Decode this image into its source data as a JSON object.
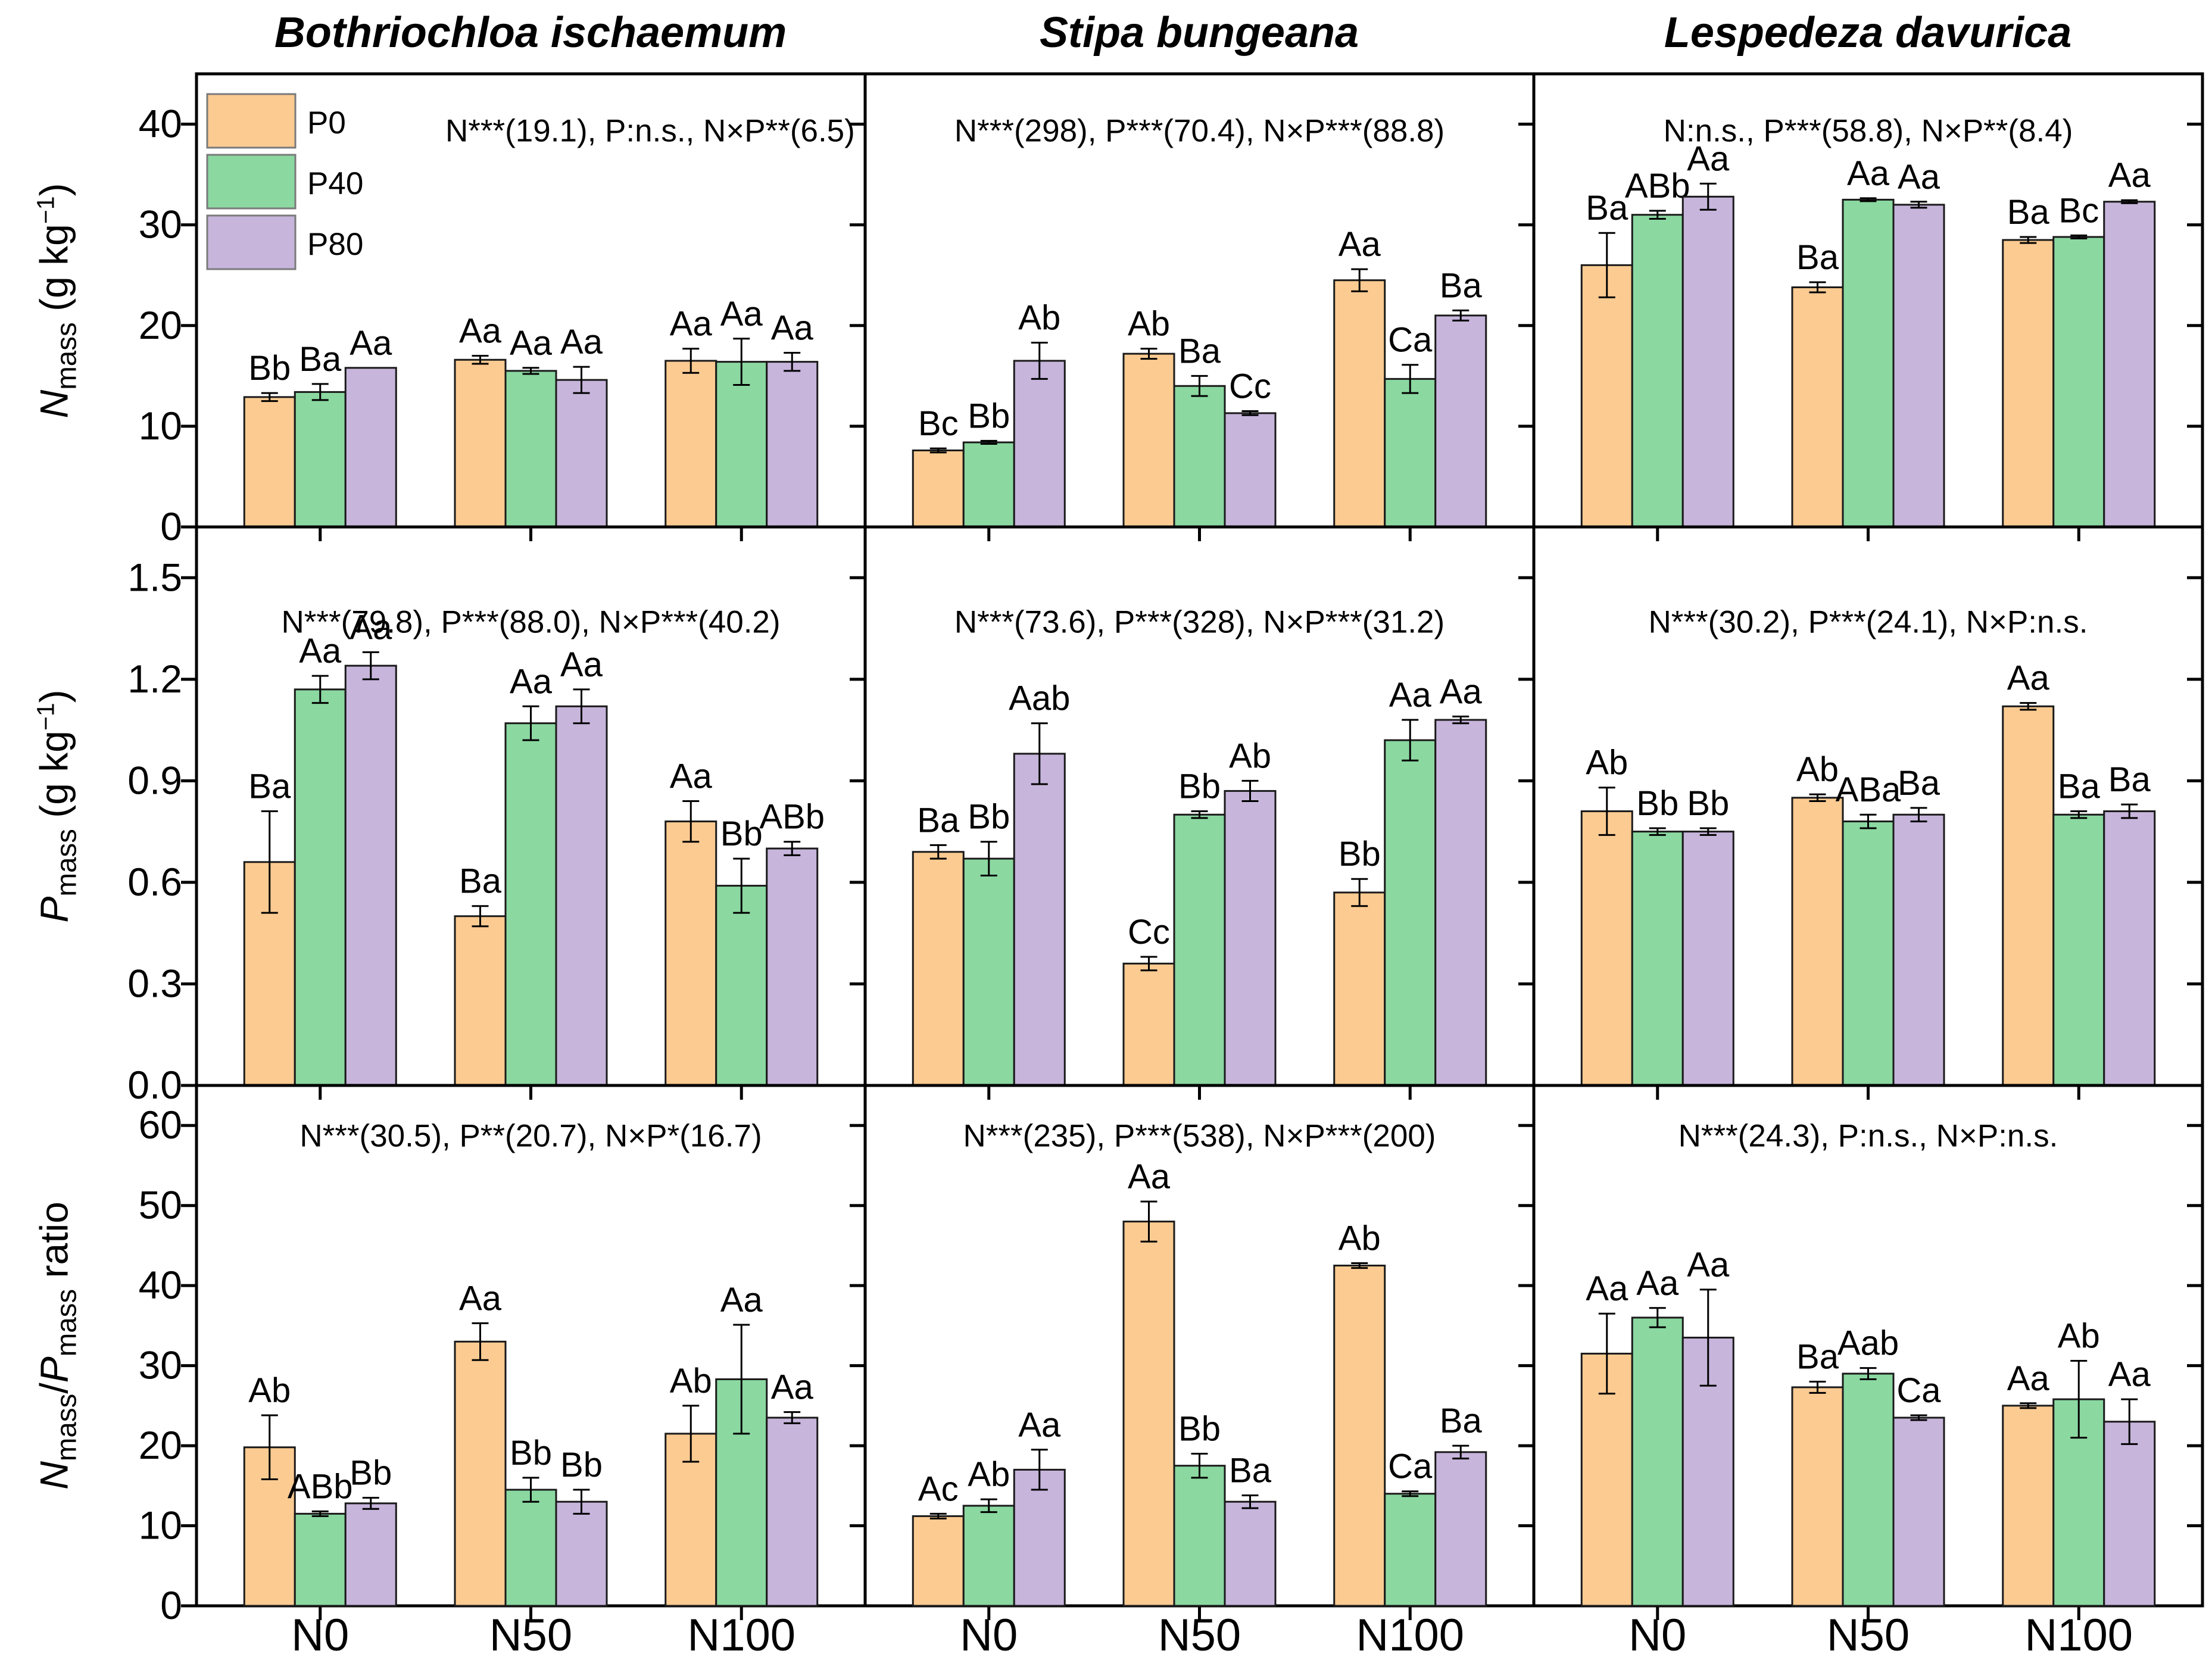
{
  "figure": {
    "kind": "3x3 grouped bar chart panel (species x traits, N and P fertilization experiment)",
    "background": "#ffffff",
    "frame_color": "#000000",
    "bar_edge_color": "#1a1a1a",
    "error_bar_color": "#000000"
  },
  "titles": {
    "col1": "Bothriochloa ischaemum",
    "col2": "Stipa bungeana",
    "col3": "Lespedeza davurica"
  },
  "legend": {
    "items": [
      {
        "label": "P0",
        "color": "#FBCB92"
      },
      {
        "label": "P40",
        "color": "#8BD8A1"
      },
      {
        "label": "P80",
        "color": "#C7B5DC"
      }
    ]
  },
  "chart_data": {
    "type": "bar",
    "categories": [
      "N0",
      "N50",
      "N100"
    ],
    "series_names": [
      "P0",
      "P40",
      "P80"
    ],
    "series_colors": [
      "#FBCB92",
      "#8BD8A1",
      "#C7B5DC"
    ],
    "grid": "off",
    "legend_position": "top-left of first panel",
    "columns": [
      "Bothriochloa ischaemum",
      "Stipa bungeana",
      "Lespedeza davurica"
    ],
    "rows": [
      {
        "ylabel_segments": [
          {
            "t": "N",
            "st": "it"
          },
          {
            "t": "mass",
            "st": "sub"
          },
          {
            "t": " (g kg",
            "st": ""
          },
          {
            "t": "−1",
            "st": "sup"
          },
          {
            "t": ")",
            "st": ""
          }
        ],
        "ticks": [
          "0",
          "10",
          "20",
          "30",
          "40"
        ],
        "ylim": [
          0,
          45
        ]
      },
      {
        "ylabel_segments": [
          {
            "t": "P",
            "st": "it"
          },
          {
            "t": "mass",
            "st": "sub"
          },
          {
            "t": " (g kg",
            "st": ""
          },
          {
            "t": "−1",
            "st": "sup"
          },
          {
            "t": ")",
            "st": ""
          }
        ],
        "ticks": [
          "0.0",
          "0.3",
          "0.6",
          "0.9",
          "1.2",
          "1.5"
        ],
        "ylim": [
          0,
          1.65
        ]
      },
      {
        "ylabel_segments": [
          {
            "t": "N",
            "st": "it"
          },
          {
            "t": "mass",
            "st": "sub"
          },
          {
            "t": "/",
            "st": ""
          },
          {
            "t": "P",
            "st": "it"
          },
          {
            "t": "mass",
            "st": "sub"
          },
          {
            "t": " ratio",
            "st": ""
          }
        ],
        "ticks": [
          "0",
          "10",
          "20",
          "30",
          "40",
          "50",
          "60"
        ],
        "ylim": [
          0,
          65
        ]
      }
    ],
    "panels": [
      [
        {
          "annotation": "N***(19.1), P:n.s., N×P**(6.5)",
          "groups": [
            {
              "category": "N0",
              "values": [
                12.9,
                13.4,
                15.8
              ],
              "errors": [
                0.4,
                0.8,
                0
              ],
              "sig_labels": [
                "Bb",
                "Ba",
                "Aa"
              ]
            },
            {
              "category": "N50",
              "values": [
                16.6,
                15.5,
                14.6
              ],
              "errors": [
                0.4,
                0.3,
                1.3
              ],
              "sig_labels": [
                "Aa",
                "Aa",
                "Aa"
              ]
            },
            {
              "category": "N100",
              "values": [
                16.5,
                16.4,
                16.4
              ],
              "errors": [
                1.2,
                2.3,
                0.9
              ],
              "sig_labels": [
                "Aa",
                "Aa",
                "Aa"
              ]
            }
          ]
        },
        {
          "annotation": "N***(298), P***(70.4), N×P***(88.8)",
          "groups": [
            {
              "category": "N0",
              "values": [
                7.6,
                8.4,
                16.5
              ],
              "errors": [
                0.2,
                0.15,
                1.8
              ],
              "sig_labels": [
                "Bc",
                "Bb",
                "Ab"
              ]
            },
            {
              "category": "N50",
              "values": [
                17.2,
                14.0,
                11.3
              ],
              "errors": [
                0.5,
                1.0,
                0.2
              ],
              "sig_labels": [
                "Ab",
                "Ba",
                "Cc"
              ]
            },
            {
              "category": "N100",
              "values": [
                24.5,
                14.7,
                21.0
              ],
              "errors": [
                1.1,
                1.4,
                0.5
              ],
              "sig_labels": [
                "Aa",
                "Ca",
                "Ba"
              ]
            }
          ]
        },
        {
          "annotation": "N:n.s., P***(58.8), N×P**(8.4)",
          "groups": [
            {
              "category": "N0",
              "values": [
                26.0,
                31.0,
                32.8
              ],
              "errors": [
                3.2,
                0.4,
                1.3
              ],
              "sig_labels": [
                "Ba",
                "ABb",
                "Aa"
              ]
            },
            {
              "category": "N50",
              "values": [
                23.8,
                32.5,
                32.0
              ],
              "errors": [
                0.5,
                0.15,
                0.3
              ],
              "sig_labels": [
                "Ba",
                "Aa",
                "Aa"
              ]
            },
            {
              "category": "N100",
              "values": [
                28.5,
                28.8,
                32.3
              ],
              "errors": [
                0.3,
                0.15,
                0.15
              ],
              "sig_labels": [
                "Ba",
                "Bc",
                "Aa"
              ]
            }
          ]
        }
      ],
      [
        {
          "annotation": "N***(79.8), P***(88.0), N×P***(40.2)",
          "groups": [
            {
              "category": "N0",
              "values": [
                0.66,
                1.17,
                1.24
              ],
              "errors": [
                0.15,
                0.04,
                0.04
              ],
              "sig_labels": [
                "Ba",
                "Aa",
                "Aa"
              ]
            },
            {
              "category": "N50",
              "values": [
                0.5,
                1.07,
                1.12
              ],
              "errors": [
                0.03,
                0.05,
                0.05
              ],
              "sig_labels": [
                "Ba",
                "Aa",
                "Aa"
              ]
            },
            {
              "category": "N100",
              "values": [
                0.78,
                0.59,
                0.7
              ],
              "errors": [
                0.06,
                0.08,
                0.02
              ],
              "sig_labels": [
                "Aa",
                "Bb",
                "ABb"
              ]
            }
          ]
        },
        {
          "annotation": "N***(73.6), P***(328), N×P***(31.2)",
          "groups": [
            {
              "category": "N0",
              "values": [
                0.69,
                0.67,
                0.98
              ],
              "errors": [
                0.02,
                0.05,
                0.09
              ],
              "sig_labels": [
                "Ba",
                "Bb",
                "Aab"
              ]
            },
            {
              "category": "N50",
              "values": [
                0.36,
                0.8,
                0.87
              ],
              "errors": [
                0.02,
                0.01,
                0.03
              ],
              "sig_labels": [
                "Cc",
                "Bb",
                "Ab"
              ]
            },
            {
              "category": "N100",
              "values": [
                0.57,
                1.02,
                1.08
              ],
              "errors": [
                0.04,
                0.06,
                0.01
              ],
              "sig_labels": [
                "Bb",
                "Aa",
                "Aa"
              ]
            }
          ]
        },
        {
          "annotation": "N***(30.2), P***(24.1), N×P:n.s.",
          "groups": [
            {
              "category": "N0",
              "values": [
                0.81,
                0.75,
                0.75
              ],
              "errors": [
                0.07,
                0.01,
                0.01
              ],
              "sig_labels": [
                "Ab",
                "Bb",
                "Bb"
              ]
            },
            {
              "category": "N50",
              "values": [
                0.85,
                0.78,
                0.8
              ],
              "errors": [
                0.01,
                0.02,
                0.02
              ],
              "sig_labels": [
                "Ab",
                "ABa",
                "Ba"
              ]
            },
            {
              "category": "N100",
              "values": [
                1.12,
                0.8,
                0.81
              ],
              "errors": [
                0.01,
                0.01,
                0.02
              ],
              "sig_labels": [
                "Aa",
                "Ba",
                "Ba"
              ]
            }
          ]
        }
      ],
      [
        {
          "annotation": "N***(30.5), P**(20.7), N×P*(16.7)",
          "groups": [
            {
              "category": "N0",
              "values": [
                19.8,
                11.5,
                12.8
              ],
              "errors": [
                4.0,
                0.3,
                0.7
              ],
              "sig_labels": [
                "Ab",
                "ABb",
                "Bb"
              ]
            },
            {
              "category": "N50",
              "values": [
                33.0,
                14.5,
                13.0
              ],
              "errors": [
                2.3,
                1.5,
                1.5
              ],
              "sig_labels": [
                "Aa",
                "Bb",
                "Bb"
              ]
            },
            {
              "category": "N100",
              "values": [
                21.5,
                28.3,
                23.5
              ],
              "errors": [
                3.5,
                6.8,
                0.7
              ],
              "sig_labels": [
                "Ab",
                "Aa",
                "Aa"
              ]
            }
          ]
        },
        {
          "annotation": "N***(235), P***(538), N×P***(200)",
          "groups": [
            {
              "category": "N0",
              "values": [
                11.2,
                12.5,
                17.0
              ],
              "errors": [
                0.3,
                0.8,
                2.5
              ],
              "sig_labels": [
                "Ac",
                "Ab",
                "Aa"
              ]
            },
            {
              "category": "N50",
              "values": [
                48.0,
                17.5,
                13.0
              ],
              "errors": [
                2.5,
                1.5,
                0.8
              ],
              "sig_labels": [
                "Aa",
                "Bb",
                "Ba"
              ]
            },
            {
              "category": "N100",
              "values": [
                42.5,
                14.0,
                19.2
              ],
              "errors": [
                0.3,
                0.3,
                0.8
              ],
              "sig_labels": [
                "Ab",
                "Ca",
                "Ba"
              ]
            }
          ]
        },
        {
          "annotation": "N***(24.3), P:n.s., N×P:n.s.",
          "groups": [
            {
              "category": "N0",
              "values": [
                31.5,
                36.0,
                33.5
              ],
              "errors": [
                5.0,
                1.2,
                6.0
              ],
              "sig_labels": [
                "Aa",
                "Aa",
                "Aa"
              ]
            },
            {
              "category": "N50",
              "values": [
                27.3,
                29.0,
                23.5
              ],
              "errors": [
                0.7,
                0.7,
                0.3
              ],
              "sig_labels": [
                "Ba",
                "Aab",
                "Ca"
              ]
            },
            {
              "category": "N100",
              "values": [
                25.0,
                25.8,
                23.0
              ],
              "errors": [
                0.3,
                4.8,
                2.8
              ],
              "sig_labels": [
                "Aa",
                "Ab",
                "Aa"
              ]
            }
          ]
        }
      ]
    ]
  }
}
